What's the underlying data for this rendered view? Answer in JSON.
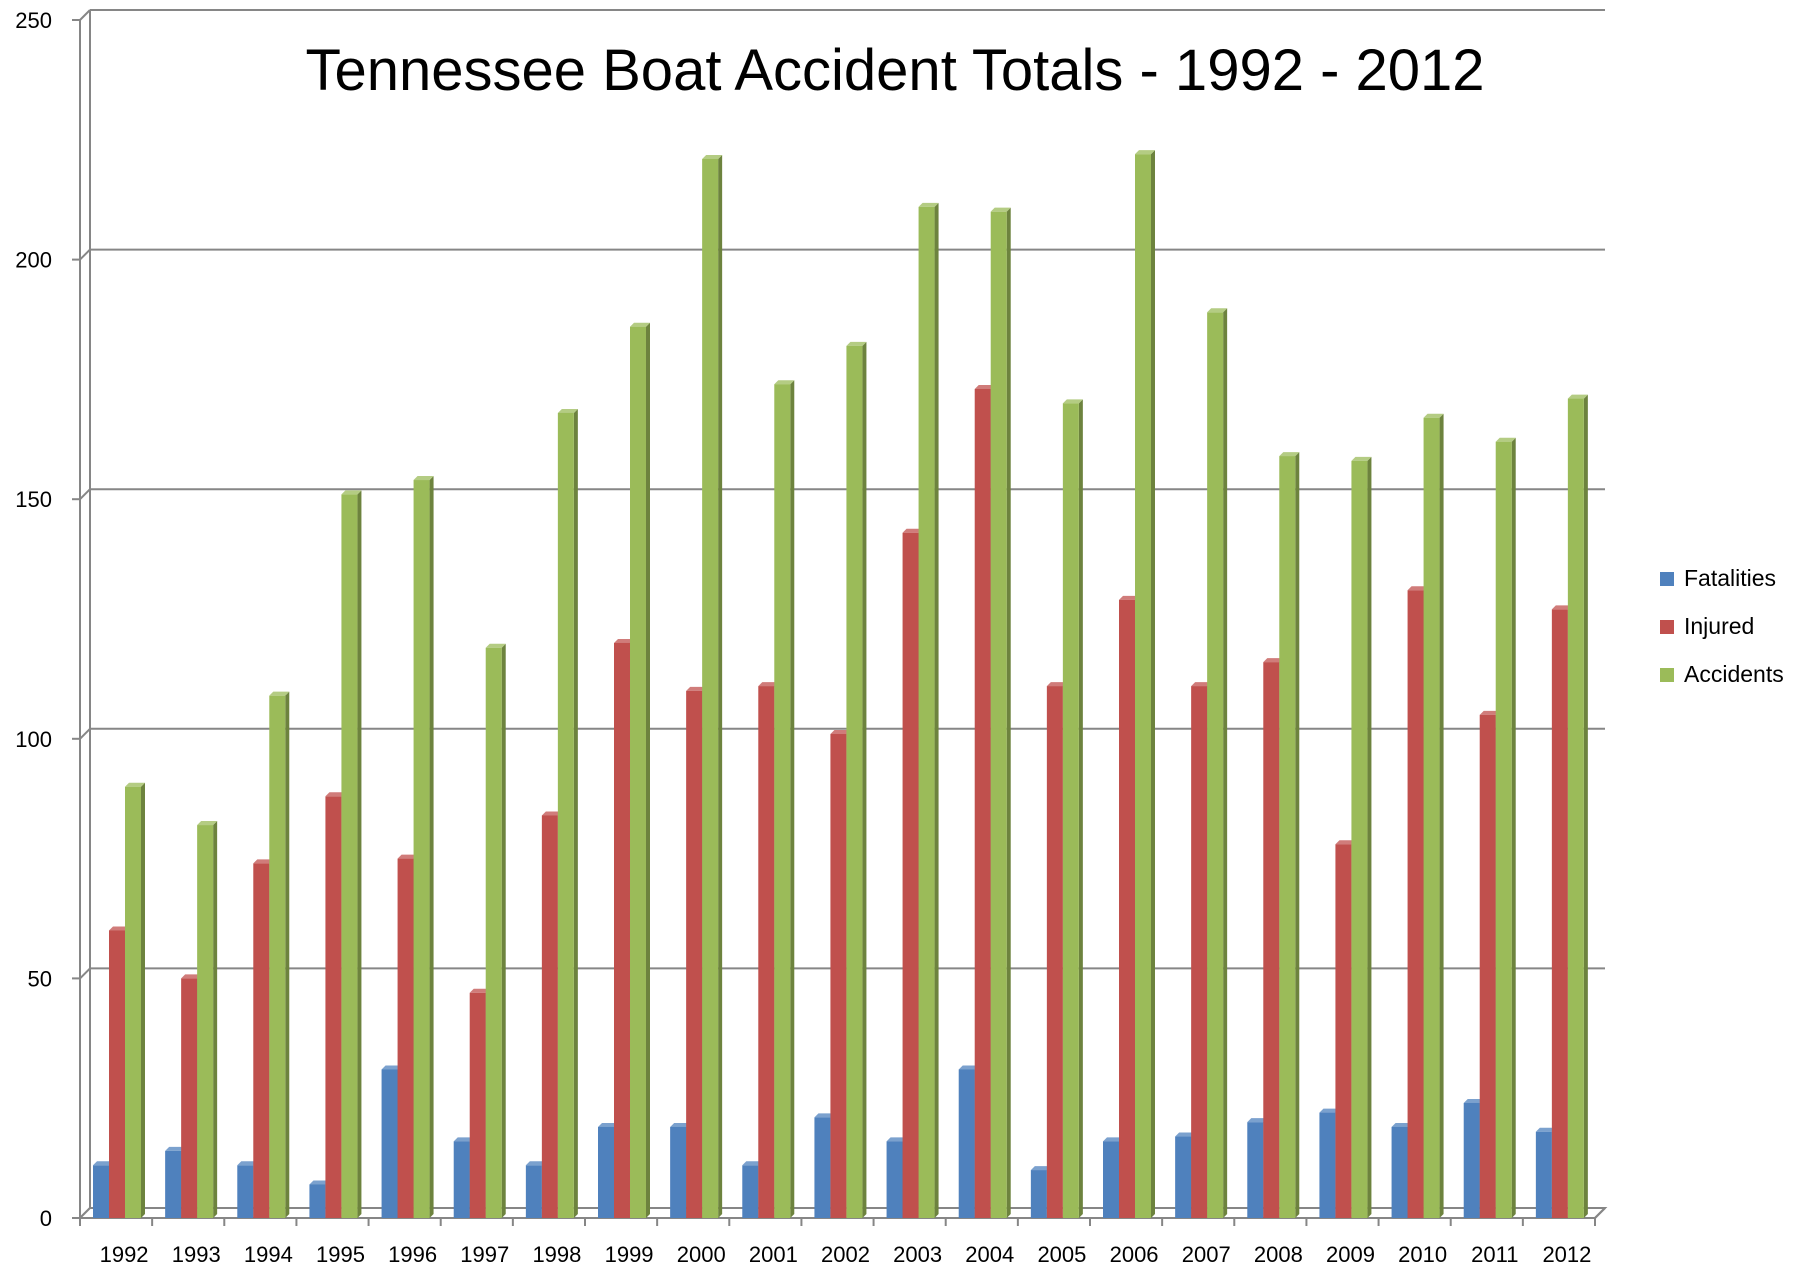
{
  "chart_data": {
    "type": "bar",
    "title": "Tennessee Boat Accident Totals - 1992 - 2012",
    "xlabel": "",
    "ylabel": "",
    "ylim": [
      0,
      250
    ],
    "yticks": [
      "0",
      "50",
      "100",
      "150",
      "200",
      "250"
    ],
    "grid": true,
    "legend_position": "right",
    "categories": [
      "1992",
      "1993",
      "1994",
      "1995",
      "1996",
      "1997",
      "1998",
      "1999",
      "2000",
      "2001",
      "2002",
      "2003",
      "2004",
      "2005",
      "2006",
      "2007",
      "2008",
      "2009",
      "2010",
      "2011",
      "2012"
    ],
    "series": [
      {
        "name": "Fatalities",
        "color": "#4F81BD",
        "values": [
          11,
          14,
          11,
          7,
          31,
          16,
          11,
          19,
          19,
          11,
          21,
          16,
          31,
          10,
          16,
          17,
          20,
          22,
          19,
          24,
          18
        ]
      },
      {
        "name": "Injured",
        "color": "#C0504D",
        "values": [
          60,
          50,
          74,
          88,
          75,
          47,
          84,
          120,
          110,
          111,
          101,
          143,
          173,
          111,
          129,
          111,
          116,
          78,
          131,
          105,
          127
        ]
      },
      {
        "name": "Accidents",
        "color": "#9BBB59",
        "values": [
          90,
          82,
          109,
          151,
          154,
          119,
          168,
          186,
          221,
          174,
          182,
          211,
          210,
          170,
          222,
          189,
          159,
          158,
          167,
          162,
          171
        ]
      }
    ]
  }
}
